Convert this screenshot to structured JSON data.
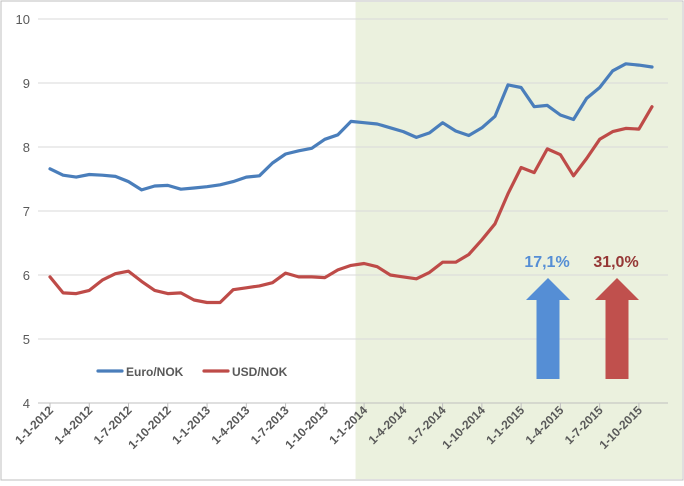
{
  "chart_data": {
    "type": "line",
    "yticks": [
      "4",
      "5",
      "6",
      "7",
      "8",
      "9",
      "10"
    ],
    "ylim": [
      4,
      10
    ],
    "x": [
      "1-1-2012",
      "1-2-2012",
      "1-3-2012",
      "1-4-2012",
      "1-5-2012",
      "1-6-2012",
      "1-7-2012",
      "1-8-2012",
      "1-9-2012",
      "1-10-2012",
      "1-11-2012",
      "1-12-2012",
      "1-1-2013",
      "1-2-2013",
      "1-3-2013",
      "1-4-2013",
      "1-5-2013",
      "1-6-2013",
      "1-7-2013",
      "1-8-2013",
      "1-9-2013",
      "1-10-2013",
      "1-11-2013",
      "1-12-2013",
      "1-1-2014",
      "1-2-2014",
      "1-3-2014",
      "1-4-2014",
      "1-5-2014",
      "1-6-2014",
      "1-7-2014",
      "1-8-2014",
      "1-9-2014",
      "1-10-2014",
      "1-11-2014",
      "1-12-2014",
      "1-1-2015",
      "1-2-2015",
      "1-3-2015",
      "1-4-2015",
      "1-5-2015",
      "1-6-2015",
      "1-7-2015",
      "1-8-2015",
      "1-9-2015",
      "1-10-2015",
      "1-11-2015"
    ],
    "xtick_labels": [
      "1-1-2012",
      "1-4-2012",
      "1-7-2012",
      "1-10-2012",
      "1-1-2013",
      "1-4-2013",
      "1-7-2013",
      "1-10-2013",
      "1-1-2014",
      "1-4-2014",
      "1-7-2014",
      "1-10-2014",
      "1-1-2015",
      "1-4-2015",
      "1-7-2015",
      "1-10-2015"
    ],
    "series": [
      {
        "name": "Euro/NOK",
        "color": "#4a7ebb",
        "values": [
          7.66,
          7.56,
          7.53,
          7.57,
          7.56,
          7.54,
          7.46,
          7.33,
          7.39,
          7.4,
          7.34,
          7.36,
          7.38,
          7.41,
          7.46,
          7.53,
          7.55,
          7.75,
          7.89,
          7.94,
          7.98,
          8.12,
          8.19,
          8.4,
          8.38,
          8.36,
          8.3,
          8.24,
          8.15,
          8.22,
          8.38,
          8.25,
          8.18,
          8.3,
          8.48,
          8.97,
          8.93,
          8.63,
          8.65,
          8.5,
          8.43,
          8.76,
          8.93,
          9.19,
          9.3,
          9.28,
          9.25
        ]
      },
      {
        "name": "USD/NOK",
        "color": "#be4b48",
        "values": [
          5.97,
          5.72,
          5.71,
          5.76,
          5.92,
          6.02,
          6.06,
          5.9,
          5.76,
          5.71,
          5.72,
          5.61,
          5.57,
          5.57,
          5.77,
          5.8,
          5.83,
          5.88,
          6.03,
          5.97,
          5.97,
          5.96,
          6.08,
          6.15,
          6.18,
          6.13,
          6.0,
          5.97,
          5.94,
          6.04,
          6.2,
          6.2,
          6.32,
          6.55,
          6.8,
          7.27,
          7.68,
          7.6,
          7.97,
          7.88,
          7.55,
          7.82,
          8.12,
          8.24,
          8.29,
          8.28,
          8.63
        ]
      }
    ],
    "highlight_region": {
      "from": "1-12-2013",
      "to": "end",
      "color": "#ebf1de"
    },
    "annotations": [
      {
        "text": "17,1%",
        "color": "#558ed5",
        "arrow_color": "#558ed5",
        "series": "Euro/NOK"
      },
      {
        "text": "31,0%",
        "color": "#953735",
        "arrow_color": "#c0504d",
        "series": "USD/NOK"
      }
    ],
    "legend_position": "bottom-left",
    "grid": "horizontal"
  }
}
